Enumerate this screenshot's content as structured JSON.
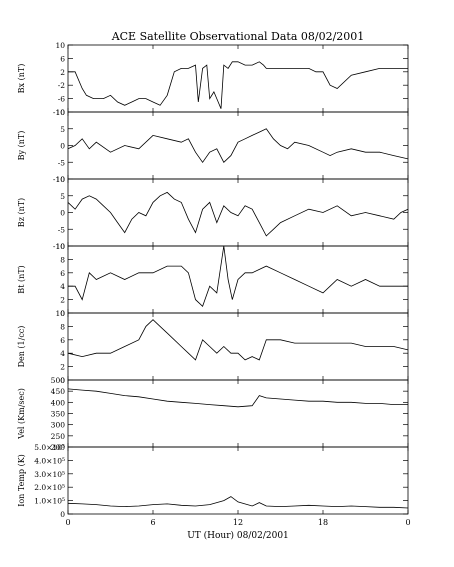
{
  "title": "ACE Satellite Observational Data   08/02/2001",
  "xlabel": "UT (Hour)   08/02/2001",
  "x_ticks": [
    "0",
    "6",
    "12",
    "18",
    "0"
  ],
  "chart_data": [
    {
      "type": "line",
      "ylabel": "Bx (nT)",
      "ylim": [
        -10,
        10
      ],
      "yticks": [
        "10",
        "6",
        "2",
        "-2",
        "-6",
        "-10"
      ],
      "x": [
        0,
        0.5,
        1.0,
        1.3,
        1.8,
        2.5,
        3.0,
        3.5,
        4.0,
        4.5,
        5.0,
        5.5,
        6.0,
        6.5,
        7.0,
        7.5,
        8.0,
        8.5,
        9.0,
        9.2,
        9.5,
        9.8,
        10.0,
        10.3,
        10.6,
        10.8,
        11.0,
        11.3,
        11.6,
        12.0,
        12.5,
        13.0,
        13.5,
        13.8,
        14.0,
        15.0,
        16.0,
        16.5,
        17.0,
        17.5,
        18.0,
        18.5,
        19.0,
        20.0,
        21.0,
        22.0,
        23.0,
        24.0
      ],
      "values": [
        2,
        2,
        -3,
        -5,
        -6,
        -6,
        -5,
        -7,
        -8,
        -7,
        -6,
        -6,
        -7,
        -8,
        -5,
        2,
        3,
        3,
        4,
        -7,
        3,
        4,
        -6,
        -4,
        -7,
        -9,
        4,
        3,
        5,
        5,
        4,
        4,
        5,
        4,
        3,
        3,
        3,
        3,
        3,
        2,
        2,
        -2,
        -3,
        1,
        2,
        3,
        3,
        3
      ]
    },
    {
      "type": "line",
      "ylabel": "By (nT)",
      "ylim": [
        -10,
        10
      ],
      "yticks": [
        "10",
        "5",
        "0",
        "-5",
        "-10"
      ],
      "x": [
        0,
        0.5,
        1.0,
        1.5,
        2.0,
        3.0,
        4.0,
        5.0,
        6.0,
        7.0,
        8.0,
        8.5,
        9.0,
        9.5,
        10.0,
        10.5,
        11.0,
        11.5,
        12.0,
        12.5,
        13.0,
        13.5,
        14.0,
        14.5,
        15.0,
        15.5,
        16.0,
        17.0,
        18.0,
        18.5,
        19.0,
        20.0,
        21.0,
        22.0,
        23.0,
        24.0
      ],
      "values": [
        -1,
        0,
        2,
        -1,
        1,
        -2,
        0,
        -1,
        3,
        2,
        1,
        2,
        -2,
        -5,
        -2,
        -1,
        -5,
        -3,
        1,
        2,
        3,
        4,
        5,
        2,
        0,
        -1,
        1,
        0,
        -2,
        -3,
        -2,
        -1,
        -2,
        -2,
        -3,
        -4
      ]
    },
    {
      "type": "line",
      "ylabel": "Bz (nT)",
      "ylim": [
        -10,
        10
      ],
      "yticks": [
        "10",
        "5",
        "0",
        "-5",
        "-10"
      ],
      "x": [
        0,
        0.5,
        1.0,
        1.5,
        2.0,
        2.5,
        3.0,
        3.5,
        4.0,
        4.5,
        5.0,
        5.5,
        6.0,
        6.5,
        7.0,
        7.5,
        8.0,
        8.5,
        9.0,
        9.5,
        10.0,
        10.5,
        11.0,
        11.5,
        12.0,
        12.5,
        13.0,
        13.5,
        14.0,
        14.5,
        15.0,
        16.0,
        17.0,
        18.0,
        19.0,
        20.0,
        21.0,
        22.0,
        23.0,
        23.5,
        24.0
      ],
      "values": [
        3,
        1,
        4,
        5,
        4,
        2,
        0,
        -3,
        -6,
        -2,
        0,
        -1,
        3,
        5,
        6,
        4,
        3,
        -2,
        -6,
        1,
        3,
        -3,
        2,
        0,
        -1,
        2,
        1,
        -3,
        -7,
        -5,
        -3,
        -1,
        1,
        0,
        2,
        -1,
        0,
        -1,
        -2,
        0,
        1
      ]
    },
    {
      "type": "line",
      "ylabel": "Bt (nT)",
      "ylim": [
        0,
        10
      ],
      "yticks": [
        "10",
        "8",
        "6",
        "4",
        "2",
        "0"
      ],
      "x": [
        0,
        0.5,
        1.0,
        1.5,
        2.0,
        3.0,
        4.0,
        5.0,
        6.0,
        7.0,
        8.0,
        8.5,
        9.0,
        9.5,
        10.0,
        10.5,
        11.0,
        11.3,
        11.6,
        12.0,
        12.5,
        13.0,
        14.0,
        15.0,
        16.0,
        17.0,
        18.0,
        18.5,
        19.0,
        20.0,
        21.0,
        22.0,
        23.0,
        24.0
      ],
      "values": [
        4,
        4,
        2,
        6,
        5,
        6,
        5,
        6,
        6,
        7,
        7,
        6,
        2,
        1,
        4,
        3,
        10,
        5,
        2,
        5,
        6,
        6,
        7,
        6,
        5,
        4,
        3,
        4,
        5,
        4,
        5,
        4,
        4,
        4
      ]
    },
    {
      "type": "line",
      "ylabel": "Den (1/cc)",
      "ylim": [
        0,
        10
      ],
      "yticks": [
        "10",
        "8",
        "6",
        "4",
        "2",
        "0"
      ],
      "x": [
        0,
        1.0,
        2.0,
        3.0,
        4.0,
        5.0,
        5.5,
        6.0,
        6.5,
        7.0,
        7.5,
        8.0,
        8.5,
        9.0,
        9.5,
        10.0,
        10.5,
        11.0,
        11.5,
        12.0,
        12.5,
        13.0,
        13.5,
        14.0,
        15.0,
        16.0,
        17.0,
        18.0,
        19.0,
        20.0,
        21.0,
        22.0,
        23.0,
        24.0
      ],
      "values": [
        4,
        3.5,
        4,
        4,
        5,
        6,
        8,
        9,
        8,
        7,
        6,
        5,
        4,
        3,
        6,
        5,
        4,
        5,
        4,
        4,
        3,
        3.5,
        3,
        6,
        6,
        5.5,
        5.5,
        5.5,
        5.5,
        5.5,
        5,
        5,
        5,
        4.5
      ]
    },
    {
      "type": "line",
      "ylabel": "Vel (Km/sec)",
      "ylim": [
        200,
        500
      ],
      "yticks": [
        "500",
        "450",
        "400",
        "350",
        "300",
        "250",
        "200"
      ],
      "x": [
        0,
        1.0,
        2.0,
        3.0,
        4.0,
        5.0,
        6.0,
        7.0,
        8.0,
        9.0,
        10.0,
        11.0,
        12.0,
        13.0,
        13.5,
        14.0,
        15.0,
        16.0,
        17.0,
        18.0,
        19.0,
        20.0,
        21.0,
        22.0,
        23.0,
        24.0
      ],
      "values": [
        460,
        455,
        450,
        440,
        430,
        425,
        415,
        405,
        400,
        395,
        390,
        385,
        380,
        385,
        430,
        420,
        415,
        410,
        405,
        405,
        400,
        400,
        395,
        395,
        390,
        390
      ]
    },
    {
      "type": "line",
      "ylabel": "Ion Temp (K)",
      "ylim": [
        0,
        500000
      ],
      "yticks": [
        "5.0×10⁵",
        "4.0×10⁵",
        "3.0×10⁵",
        "2.0×10⁵",
        "1.0×10⁵",
        "0"
      ],
      "x": [
        0,
        1.0,
        2.0,
        3.0,
        4.0,
        5.0,
        6.0,
        7.0,
        8.0,
        9.0,
        10.0,
        11.0,
        11.5,
        12.0,
        13.0,
        13.5,
        14.0,
        15.0,
        16.0,
        17.0,
        18.0,
        19.0,
        20.0,
        21.0,
        22.0,
        23.0,
        24.0
      ],
      "values": [
        80000,
        75000,
        70000,
        60000,
        55000,
        60000,
        70000,
        75000,
        65000,
        60000,
        70000,
        100000,
        130000,
        90000,
        60000,
        85000,
        60000,
        55000,
        60000,
        65000,
        60000,
        55000,
        60000,
        55000,
        50000,
        50000,
        45000
      ]
    }
  ]
}
